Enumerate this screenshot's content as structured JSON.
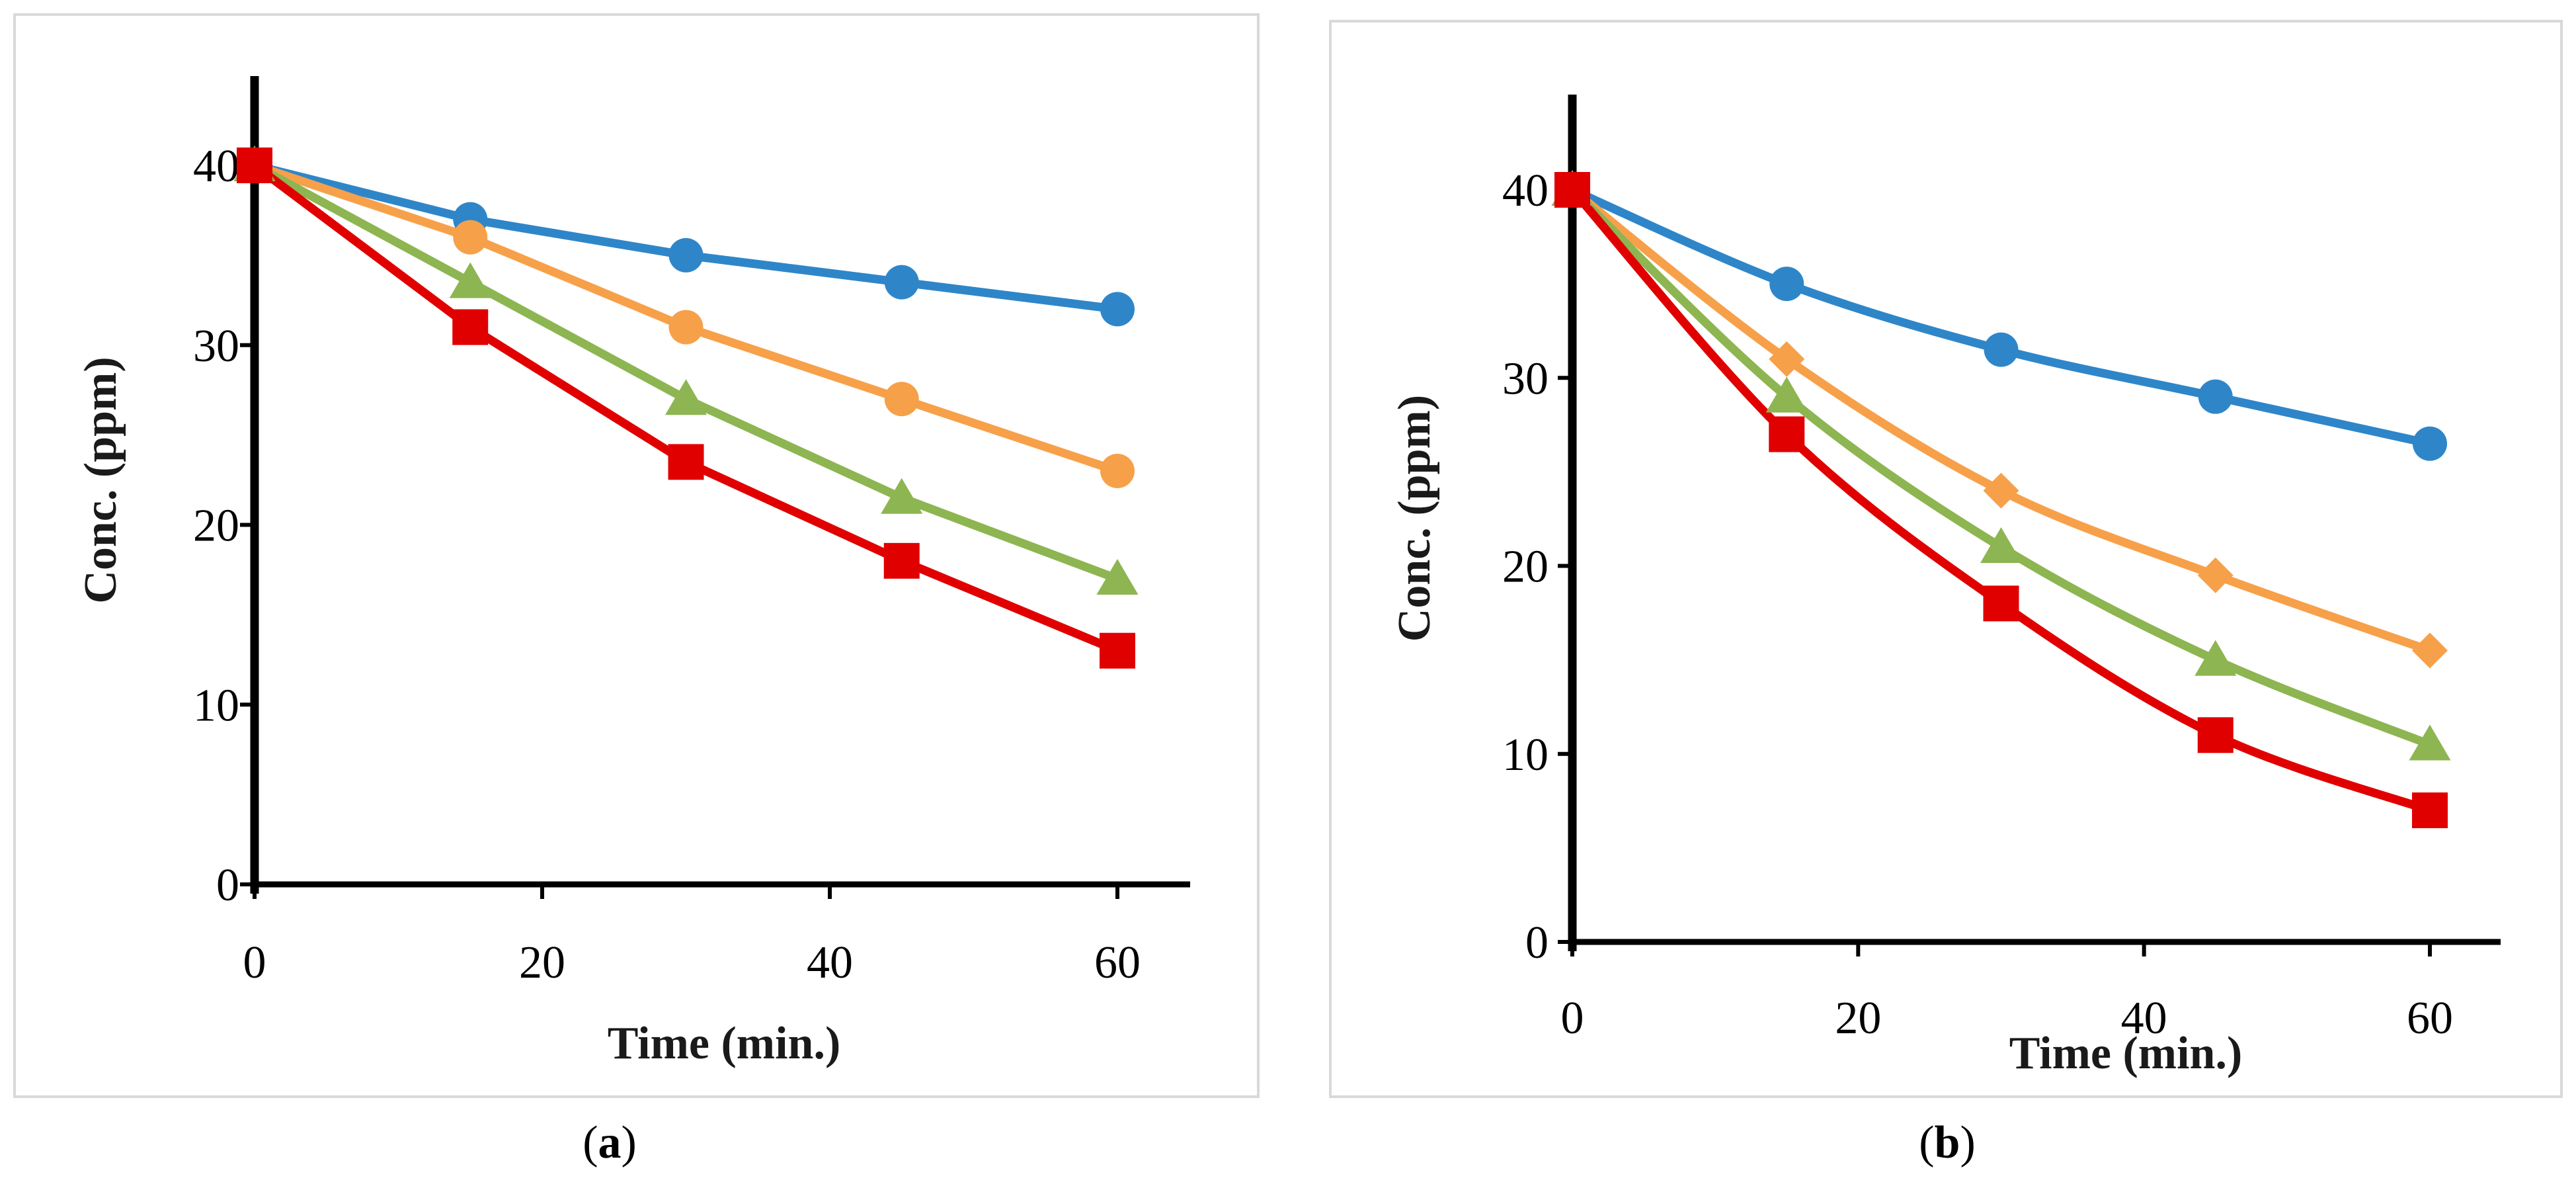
{
  "chart_data": [
    {
      "type": "line",
      "panel_label": "a",
      "title": "",
      "xlabel": "Time (min.)",
      "ylabel": "Conc. (ppm)",
      "xlim": [
        0,
        65
      ],
      "ylim": [
        0,
        45
      ],
      "xticks": [
        0,
        20,
        40,
        60
      ],
      "yticks": [
        0,
        10,
        20,
        30,
        40
      ],
      "grid": false,
      "x": [
        0,
        15,
        30,
        45,
        60
      ],
      "series": [
        {
          "name": "blue circles",
          "color": "#2E86C9",
          "marker": "circle",
          "values": [
            40,
            37,
            35,
            33.5,
            32
          ]
        },
        {
          "name": "orange circles",
          "color": "#F7A04A",
          "marker": "circle",
          "values": [
            40,
            36,
            31,
            27,
            23
          ]
        },
        {
          "name": "green triangles",
          "color": "#8DB551",
          "marker": "triangle",
          "values": [
            40,
            33.5,
            27,
            21.5,
            17
          ]
        },
        {
          "name": "red squares",
          "color": "#E00000",
          "marker": "square",
          "values": [
            40,
            31,
            23.5,
            18,
            13
          ]
        }
      ]
    },
    {
      "type": "line",
      "panel_label": "b",
      "title": "",
      "xlabel": "Time (min.)",
      "ylabel": "Conc. (ppm)",
      "xlim": [
        0,
        65
      ],
      "ylim": [
        0,
        45
      ],
      "xticks": [
        0,
        20,
        40,
        60
      ],
      "yticks": [
        0,
        10,
        20,
        30,
        40
      ],
      "grid": false,
      "x": [
        0,
        15,
        30,
        45,
        60
      ],
      "series": [
        {
          "name": "blue circles",
          "color": "#2E86C9",
          "marker": "circle",
          "values": [
            40,
            35,
            31.5,
            29,
            26.5
          ]
        },
        {
          "name": "orange diamonds",
          "color": "#F7A04A",
          "marker": "diamond",
          "values": [
            40,
            31,
            24,
            19.5,
            15.5
          ]
        },
        {
          "name": "green triangles",
          "color": "#8DB551",
          "marker": "triangle",
          "values": [
            40,
            29,
            21,
            15,
            10.5
          ]
        },
        {
          "name": "red squares",
          "color": "#E00000",
          "marker": "square",
          "values": [
            40,
            27,
            18,
            11,
            7
          ]
        }
      ]
    }
  ],
  "captions": {
    "a": {
      "open": "(",
      "letter": "a",
      "close": ")"
    },
    "b": {
      "open": "(",
      "letter": "b",
      "close": ")"
    }
  }
}
